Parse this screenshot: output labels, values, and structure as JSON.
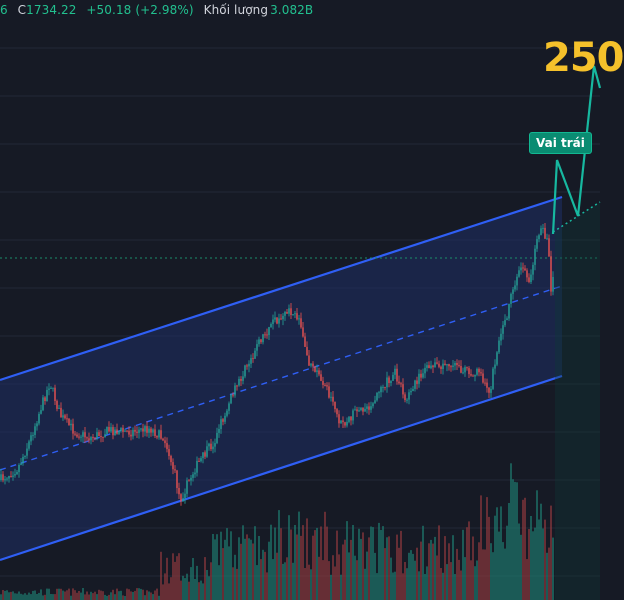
{
  "header": {
    "open_tail": "6",
    "close_label": "C",
    "close_value": "1734.22",
    "change": "+50.18 (+2.98%)",
    "volume_label": "Khối lượng",
    "volume_value": "3.082B"
  },
  "target_label": "250",
  "pattern_label": "Vai trái",
  "colors": {
    "background": "#161a25",
    "grid": "#232836",
    "channel_line": "#2f5ff5",
    "channel_fill": "#1f2f66",
    "up_candle": "#26a69a",
    "down_candle": "#ef5350",
    "projection": "#17b8a0",
    "target_text": "#f5c12b",
    "price_line": "#1a8f6a"
  },
  "chart_data": {
    "type": "candlestick",
    "title": "",
    "xlabel": "",
    "ylabel": "",
    "last_close": 1734.22,
    "change": 50.18,
    "change_pct": 2.98,
    "volume": "3.082B",
    "grid": true,
    "annotations": [
      {
        "type": "parallel-channel",
        "label": ""
      },
      {
        "type": "projection-path",
        "label": "Vai trái"
      },
      {
        "type": "target",
        "label": "250"
      }
    ]
  }
}
